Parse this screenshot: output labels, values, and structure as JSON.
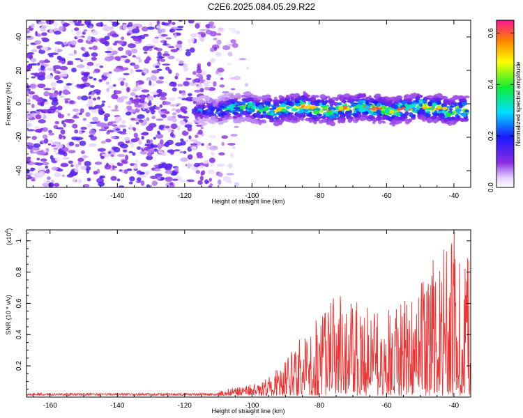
{
  "title": "C2E6.2025.084.05.29.R22",
  "chart_data": [
    {
      "type": "heatmap",
      "xlabel": "Height of straight line (km)",
      "ylabel": "Frequency (Hz)",
      "xlim": [
        -167,
        -35
      ],
      "ylim": [
        -50,
        50
      ],
      "x_ticks": [
        -160,
        -140,
        -120,
        -100,
        -80,
        -60,
        -40
      ],
      "y_ticks": [
        -40,
        -20,
        0,
        20,
        40
      ],
      "colorbar": {
        "label": "Normalized spectral amplitude",
        "range": [
          0,
          0.65
        ],
        "ticks": [
          0.0,
          0.2,
          0.4,
          0.6
        ]
      },
      "features": {
        "noise_region_x": [
          -167,
          -100
        ],
        "signal_band_x": [
          -117,
          -36
        ],
        "signal_band_center_hz": -3,
        "signal_band_halfwidth_hz": 8,
        "peak_amplitude": 0.62
      }
    },
    {
      "type": "line",
      "xlabel": "Height of straight line (km)",
      "ylabel": "SNR (10 * v/v)",
      "y_multiplier": "(x10",
      "y_multiplier_exp": "4",
      "xlim": [
        -167,
        -35
      ],
      "ylim": [
        0,
        1.07
      ],
      "x_ticks": [
        -160,
        -140,
        -120,
        -100,
        -80,
        -60,
        -40
      ],
      "y_ticks": [
        0.2,
        0.4,
        0.6,
        0.8,
        1.0
      ],
      "series_color": "#ee3333",
      "envelope": {
        "x": [
          -167,
          -120,
          -110,
          -100,
          -95,
          -90,
          -85,
          -80,
          -75,
          -70,
          -65,
          -60,
          -55,
          -50,
          -45,
          -40,
          -36
        ],
        "y": [
          0.02,
          0.02,
          0.03,
          0.07,
          0.12,
          0.22,
          0.38,
          0.5,
          0.62,
          0.58,
          0.55,
          0.52,
          0.58,
          0.68,
          0.88,
          1.05,
          0.85
        ]
      }
    }
  ]
}
